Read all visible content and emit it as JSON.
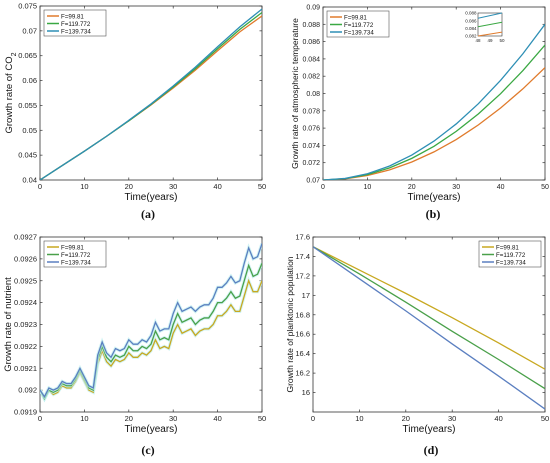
{
  "chart_data": [
    {
      "panel_label": "(a)",
      "type": "line",
      "xlabel": "Time(years)",
      "ylabel": "Growth rate of CO",
      "ylabel_sub": "2",
      "xlim": [
        0,
        50
      ],
      "ylim": [
        0.04,
        0.075
      ],
      "xticks": [
        0,
        10,
        20,
        30,
        40,
        50
      ],
      "xtick_labels": [
        "0",
        "10",
        "20",
        "30",
        "40",
        "50"
      ],
      "yticks": [
        0.04,
        0.045,
        0.05,
        0.055,
        0.06,
        0.065,
        0.07,
        0.075
      ],
      "ytick_labels": [
        "0.04",
        "0.045",
        "0.05",
        "0.055",
        "0.06",
        "0.065",
        "0.07",
        "0.075"
      ],
      "legend_position": "top-left",
      "x": [
        0,
        5,
        10,
        15,
        20,
        25,
        30,
        35,
        40,
        45,
        50
      ],
      "series": [
        {
          "name": "F=99.81",
          "color": "#e07b2c",
          "values": [
            0.04,
            0.0429,
            0.0458,
            0.0488,
            0.0519,
            0.0551,
            0.0585,
            0.0621,
            0.066,
            0.0698,
            0.073
          ]
        },
        {
          "name": "F=119.772",
          "color": "#3aa843",
          "values": [
            0.04,
            0.0429,
            0.0458,
            0.0488,
            0.0519,
            0.0552,
            0.0587,
            0.0624,
            0.0664,
            0.0703,
            0.0737
          ]
        },
        {
          "name": "F=139.734",
          "color": "#2e8fb5",
          "values": [
            0.04,
            0.0429,
            0.0458,
            0.0488,
            0.052,
            0.0553,
            0.0589,
            0.0627,
            0.0668,
            0.0708,
            0.0744
          ]
        }
      ]
    },
    {
      "panel_label": "(b)",
      "type": "line",
      "xlabel": "Time(years)",
      "ylabel": "Growth rate of atmospheric temperature",
      "xlim": [
        0,
        50
      ],
      "ylim": [
        0.07,
        0.09
      ],
      "xticks": [
        0,
        10,
        20,
        30,
        40,
        50
      ],
      "xtick_labels": [
        "0",
        "10",
        "20",
        "30",
        "40",
        "50"
      ],
      "yticks": [
        0.07,
        0.072,
        0.074,
        0.076,
        0.078,
        0.08,
        0.082,
        0.084,
        0.086,
        0.088,
        0.09
      ],
      "ytick_labels": [
        "0.07",
        "0.072",
        "0.074",
        "0.076",
        "0.078",
        "0.08",
        "0.082",
        "0.084",
        "0.086",
        "0.088",
        "0.09"
      ],
      "legend_position": "top-left",
      "x": [
        0,
        5,
        10,
        15,
        20,
        25,
        30,
        35,
        40,
        45,
        50
      ],
      "series": [
        {
          "name": "F=99.81",
          "color": "#e07b2c",
          "values": [
            0.07,
            0.07013,
            0.07052,
            0.07117,
            0.07208,
            0.07325,
            0.07468,
            0.07637,
            0.07832,
            0.08053,
            0.083
          ]
        },
        {
          "name": "F=119.772",
          "color": "#3aa843",
          "values": [
            0.07,
            0.07016,
            0.07062,
            0.0714,
            0.0725,
            0.0739,
            0.07562,
            0.07764,
            0.07998,
            0.08264,
            0.0856
          ]
        },
        {
          "name": "F=139.734",
          "color": "#2e8fb5",
          "values": [
            0.07,
            0.07018,
            0.07072,
            0.07162,
            0.07288,
            0.0745,
            0.07648,
            0.07882,
            0.08152,
            0.08458,
            0.088
          ]
        }
      ],
      "inset": {
        "xlim": [
          48,
          50
        ],
        "ylim": [
          0.082,
          0.088
        ],
        "xtick_labels": [
          "48",
          "49",
          "50"
        ],
        "ytick_labels": [
          "0.082",
          "0.084",
          "0.086",
          "0.088"
        ]
      }
    },
    {
      "panel_label": "(c)",
      "type": "line",
      "xlabel": "Time(years)",
      "ylabel": "Growth rate of nutrient",
      "xlim": [
        0,
        50
      ],
      "ylim": [
        0.0919,
        0.0927
      ],
      "xticks": [
        0,
        10,
        20,
        30,
        40,
        50
      ],
      "xtick_labels": [
        "0",
        "10",
        "20",
        "30",
        "40",
        "50"
      ],
      "yticks": [
        0.0919,
        0.092,
        0.0921,
        0.0922,
        0.0923,
        0.0924,
        0.0925,
        0.0926,
        0.0927
      ],
      "ytick_labels": [
        "0.0919",
        "0.092",
        "0.0921",
        "0.0922",
        "0.0923",
        "0.0924",
        "0.0925",
        "0.0926",
        "0.0927"
      ],
      "legend_position": "top-left",
      "x": [
        0,
        1,
        2,
        3,
        4,
        5,
        6,
        7,
        8,
        9,
        10,
        11,
        12,
        13,
        14,
        15,
        16,
        17,
        18,
        19,
        20,
        21,
        22,
        23,
        24,
        25,
        26,
        27,
        28,
        29,
        30,
        31,
        32,
        33,
        34,
        35,
        36,
        37,
        38,
        39,
        40,
        41,
        42,
        43,
        44,
        45,
        46,
        47,
        48,
        49,
        50
      ],
      "series": [
        {
          "name": "F=99.81",
          "color": "#c8a820",
          "values": [
            0.092,
            0.09196,
            0.092,
            0.09198,
            0.09199,
            0.09202,
            0.09201,
            0.09201,
            0.09204,
            0.09208,
            0.09204,
            0.092,
            0.09199,
            0.09212,
            0.09218,
            0.09213,
            0.09211,
            0.09214,
            0.09213,
            0.09214,
            0.09217,
            0.09215,
            0.09215,
            0.09217,
            0.09216,
            0.09218,
            0.09223,
            0.09219,
            0.0922,
            0.09219,
            0.09226,
            0.0923,
            0.09226,
            0.09227,
            0.09228,
            0.09225,
            0.09227,
            0.09228,
            0.09228,
            0.0923,
            0.09234,
            0.09234,
            0.09236,
            0.09239,
            0.09236,
            0.09236,
            0.09243,
            0.0925,
            0.09245,
            0.09245,
            0.0925
          ]
        },
        {
          "name": "F=119.772",
          "color": "#4aa04a",
          "values": [
            0.092,
            0.09196,
            0.092,
            0.09199,
            0.092,
            0.09203,
            0.09202,
            0.09202,
            0.09205,
            0.09209,
            0.09205,
            0.09201,
            0.092,
            0.09214,
            0.0922,
            0.09215,
            0.09213,
            0.09216,
            0.09215,
            0.09216,
            0.0922,
            0.09218,
            0.09218,
            0.0922,
            0.09219,
            0.09221,
            0.09227,
            0.09223,
            0.09224,
            0.09223,
            0.0923,
            0.09235,
            0.09231,
            0.09232,
            0.09233,
            0.0923,
            0.09232,
            0.09233,
            0.09233,
            0.09236,
            0.0924,
            0.0924,
            0.09242,
            0.09245,
            0.09242,
            0.09243,
            0.0925,
            0.09257,
            0.09252,
            0.09253,
            0.09258
          ]
        },
        {
          "name": "F=139.734",
          "color": "#5b7fc0",
          "values": [
            0.092,
            0.09197,
            0.09201,
            0.092,
            0.09201,
            0.09204,
            0.09203,
            0.09203,
            0.09206,
            0.0921,
            0.09206,
            0.09202,
            0.09201,
            0.09216,
            0.09222,
            0.09217,
            0.09215,
            0.09219,
            0.09218,
            0.09219,
            0.09223,
            0.09221,
            0.09221,
            0.09223,
            0.09222,
            0.09225,
            0.09231,
            0.09227,
            0.09228,
            0.09228,
            0.09235,
            0.0924,
            0.09236,
            0.09237,
            0.09238,
            0.09236,
            0.09238,
            0.09239,
            0.09239,
            0.09242,
            0.09247,
            0.09247,
            0.09249,
            0.09252,
            0.09249,
            0.0925,
            0.09258,
            0.09265,
            0.0926,
            0.09261,
            0.09267
          ]
        }
      ]
    },
    {
      "panel_label": "(d)",
      "type": "line",
      "xlabel": "Time(years)",
      "ylabel": "Growth rate of planktonic population",
      "xlim": [
        0,
        50
      ],
      "ylim": [
        15.8,
        17.6
      ],
      "xticks": [
        0,
        10,
        20,
        30,
        40,
        50
      ],
      "xtick_labels": [
        "0",
        "10",
        "20",
        "30",
        "40",
        "50"
      ],
      "yticks": [
        16,
        16.2,
        16.4,
        16.6,
        16.8,
        17,
        17.2,
        17.4,
        17.6
      ],
      "ytick_labels": [
        "16",
        "16.2",
        "16.4",
        "16.6",
        "16.8",
        "17",
        "17.2",
        "17.4",
        "17.6"
      ],
      "legend_position": "top-right",
      "x": [
        0,
        10,
        20,
        30,
        40,
        50
      ],
      "series": [
        {
          "name": "F=99.81",
          "color": "#c8a820",
          "values": [
            17.5,
            17.26,
            17.02,
            16.77,
            16.51,
            16.24
          ]
        },
        {
          "name": "F=119.772",
          "color": "#4aa04a",
          "values": [
            17.5,
            17.22,
            16.93,
            16.63,
            16.34,
            16.04
          ]
        },
        {
          "name": "F=139.734",
          "color": "#5b7fc0",
          "values": [
            17.5,
            17.17,
            16.84,
            16.5,
            16.17,
            15.83
          ]
        }
      ]
    }
  ]
}
